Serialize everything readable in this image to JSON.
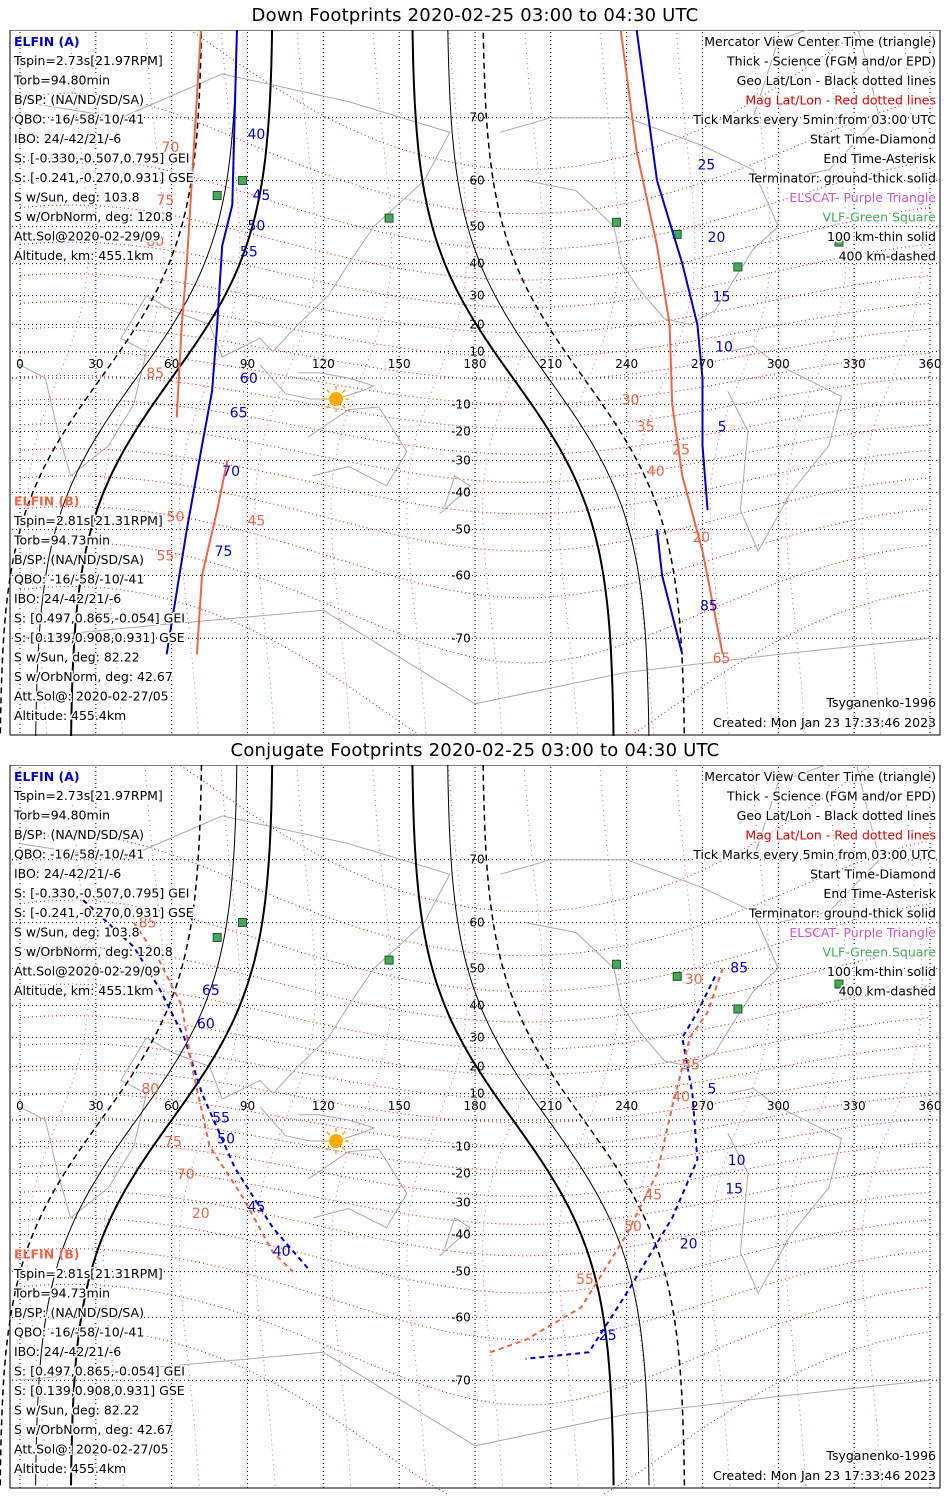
{
  "colors": {
    "elfin_a": "#0000cc",
    "elfin_b": "#ee6644",
    "mag_grid": "#dd0000",
    "terminator": "#000000",
    "purple": "#cc55cc",
    "green_square": "#44aa55",
    "sun": "#ffaa00"
  },
  "panels": [
    {
      "title": "Down Footprints 2020-02-25 03:00 to 04:30 UTC",
      "legend_right": [
        {
          "text": "Mercator View Center Time (triangle)",
          "color": "#000000"
        },
        {
          "text": "Thick - Science (FGM and/or EPD)",
          "color": "#000000"
        },
        {
          "text": "Geo Lat/Lon - Black dotted lines",
          "color": "#000000"
        },
        {
          "text": "Mag Lat/Lon - Red dotted lines",
          "color": "#dd0000"
        },
        {
          "text": "Tick Marks every 5min from 03:00 UTC",
          "color": "#000000"
        },
        {
          "text": "Start Time-Diamond",
          "color": "#000000"
        },
        {
          "text": "End Time-Asterisk",
          "color": "#000000"
        },
        {
          "text": "Terminator: ground-thick solid",
          "color": "#000000"
        },
        {
          "text": "ELSCAT- Purple Triangle",
          "color": "#cc55cc"
        },
        {
          "text": "VLF-Green Square",
          "color": "#44aa55"
        },
        {
          "text": "100 km-thin solid",
          "color": "#000000"
        },
        {
          "text": "400 km-dashed",
          "color": "#000000"
        }
      ],
      "elfin_a_label": "ELFIN (A)",
      "elfin_a_info": [
        "Tspin=2.73s[21.97RPM]",
        "Torb=94.80min",
        "B/SP: (NA/ND/SD/SA)",
        "QBO: -16/-58/-10/-41",
        "IBO: 24/-42/21/-6",
        "S: [-0.330,-0.507,0.795] GEI",
        "S: [-0.241,-0.270,0.931] GSE",
        "S w/Sun, deg: 103.8",
        "S w/OrbNorm, deg: 120.8",
        "Att.Sol@2020-02-29/09",
        "Altitude, km: 455.1km"
      ],
      "elfin_b_label": "ELFIN (B)",
      "elfin_b_info": [
        "Tspin=2.81s[21.31RPM]",
        "Torb=94.73min",
        "B/SP: (NA/ND/SD/SA)",
        "QBO: -16/-58/-10/-41",
        "IBO: 24/-42/21/-6",
        "S: [0.497,0.865,-0.054] GEI",
        "S: [0.139,0.908,0.931] GSE",
        "S w/Sun, deg: 82.22",
        "S w/OrbNorm, deg: 42.67",
        "Att.Sol@: 2020-02-27/05",
        "Altitude: 455.4km"
      ],
      "model": "Tsyganenko-1996",
      "created": "Created: Mon Jan 23 17:33:46 2023",
      "lon_ticks": [
        "0",
        "30",
        "60",
        "90",
        "120",
        "150",
        "180",
        "210",
        "240",
        "270",
        "300",
        "330",
        "360"
      ],
      "lat_ticks": [
        "70",
        "60",
        "50",
        "40",
        "30",
        "20",
        "10",
        "-10",
        "-20",
        "-30",
        "-40",
        "-50",
        "-60",
        "-70"
      ],
      "tick_labels_a": [
        "40",
        "45",
        "50",
        "55",
        "60",
        "65",
        "70",
        "75",
        "30",
        "25",
        "20",
        "15",
        "10",
        "5",
        "85"
      ],
      "tick_labels_b": [
        "70",
        "75",
        "80",
        "85",
        "55",
        "50",
        "45",
        "40",
        "35",
        "30",
        "25",
        "20",
        "65"
      ]
    },
    {
      "title": "Conjugate Footprints 2020-02-25 03:00 to 04:30 UTC",
      "legend_right": [
        {
          "text": "Mercator View Center Time (triangle)",
          "color": "#000000"
        },
        {
          "text": "Thick - Science (FGM and/or EPD)",
          "color": "#000000"
        },
        {
          "text": "Geo Lat/Lon - Black dotted lines",
          "color": "#000000"
        },
        {
          "text": "Mag Lat/Lon - Red dotted lines",
          "color": "#dd0000"
        },
        {
          "text": "Tick Marks every 5min from 03:00 UTC",
          "color": "#000000"
        },
        {
          "text": "Start Time-Diamond",
          "color": "#000000"
        },
        {
          "text": "End Time-Asterisk",
          "color": "#000000"
        },
        {
          "text": "Terminator: ground-thick solid",
          "color": "#000000"
        },
        {
          "text": "ELSCAT- Purple Triangle",
          "color": "#cc55cc"
        },
        {
          "text": "VLF-Green Square",
          "color": "#44aa55"
        },
        {
          "text": "100 km-thin solid",
          "color": "#000000"
        },
        {
          "text": "400 km-dashed",
          "color": "#000000"
        }
      ],
      "elfin_a_label": "ELFIN (A)",
      "elfin_a_info": [
        "Tspin=2.73s[21.97RPM]",
        "Torb=94.80min",
        "B/SP: (NA/ND/SD/SA)",
        "QBO: -16/-58/-10/-41",
        "IBO: 24/-42/21/-6",
        "S: [-0.330,-0.507,0.795] GEI",
        "S: [-0.241,-0.270,0.931] GSE",
        "S w/Sun, deg: 103.8",
        "S w/OrbNorm, deg: 120.8",
        "Att.Sol@2020-02-29/09",
        "Altitude, km: 455.1km"
      ],
      "elfin_b_label": "ELFIN (B)",
      "elfin_b_info": [
        "Tspin=2.81s[21.31RPM]",
        "Torb=94.73min",
        "B/SP: (NA/ND/SD/SA)",
        "QBO: -16/-58/-10/-41",
        "IBO: 24/-42/21/-6",
        "S: [0.497,0.865,-0.054] GEI",
        "S: [0.139,0.908,0.931] GSE",
        "S w/Sun, deg: 82.22",
        "S w/OrbNorm, deg: 42.67",
        "Att.Sol@: 2020-02-27/05",
        "Altitude: 455.4km"
      ],
      "model": "Tsyganenko-1996",
      "created": "Created: Mon Jan 23 17:33:46 2023",
      "lon_ticks": [
        "0",
        "30",
        "60",
        "90",
        "120",
        "150",
        "180",
        "210",
        "240",
        "270",
        "300",
        "330",
        "360"
      ],
      "lat_ticks": [
        "70",
        "60",
        "50",
        "40",
        "30",
        "20",
        "10",
        "-10",
        "-20",
        "-30",
        "-40",
        "-50",
        "-60",
        "-70"
      ],
      "tick_labels_a": [
        "65",
        "60",
        "55",
        "50",
        "45",
        "40",
        "85",
        "5",
        "10",
        "15",
        "20",
        "25"
      ],
      "tick_labels_b": [
        "85",
        "80",
        "75",
        "70",
        "20",
        "30",
        "35",
        "40",
        "45",
        "50",
        "55"
      ]
    }
  ]
}
